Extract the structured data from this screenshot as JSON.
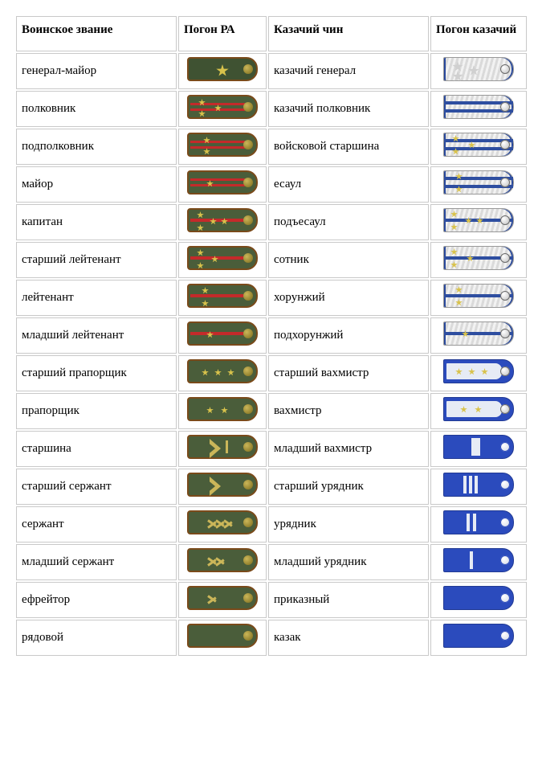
{
  "colors": {
    "ra_field": "#4a5d3a",
    "ra_border": "#7a4a1a",
    "ra_gap": "#c42a2a",
    "ra_star": "#d8c24b",
    "ra_chevron": "#cbb659",
    "cossack_silver_bg_a": "#f2f2f2",
    "cossack_silver_bg_b": "#dadada",
    "cossack_gap": "#2e4ea0",
    "cossack_blue": "#2b4bbd",
    "cossack_inner_white": "#e6ebf5",
    "cossack_star": "#d8c24b",
    "cell_border": "#c9c9c9"
  },
  "headers": {
    "military_rank": "Воинское звание",
    "ra_board": "Погон РА",
    "cossack_rank": "Казачий чин",
    "cossack_board": "Погон казачий"
  },
  "rows": [
    {
      "military_rank": "генерал-майор",
      "cossack_rank": "казачий генерал",
      "ra": {
        "base": "ra",
        "gaps": 0,
        "large_stars": [
          {
            "x": 34,
            "y": 7
          }
        ],
        "stars": [],
        "chevrons": 0,
        "wide_chevron": false,
        "thin_stripe": false,
        "button": "olive",
        "field": "#3f5232"
      },
      "cossack": {
        "base": "coss-silver",
        "gaps": 0,
        "large_stars": [
          {
            "x": 10,
            "y": 4
          },
          {
            "x": 10,
            "y": 16
          },
          {
            "x": 30,
            "y": 9
          }
        ],
        "stars": [],
        "tstripes": [],
        "button": "silver"
      }
    },
    {
      "military_rank": "полковник",
      "cossack_rank": "казачий полковник",
      "ra": {
        "base": "ra",
        "gaps": 2,
        "large_stars": [],
        "stars": [
          {
            "x": 12,
            "y": 3
          },
          {
            "x": 12,
            "y": 17
          },
          {
            "x": 32,
            "y": 10
          }
        ],
        "chevrons": 0,
        "wide_chevron": false,
        "thin_stripe": false,
        "button": "olive"
      },
      "cossack": {
        "base": "coss-silver",
        "gaps": 2,
        "large_stars": [],
        "stars": [],
        "tstripes": [],
        "button": "silver"
      }
    },
    {
      "military_rank": "подполковник",
      "cossack_rank": "войсковой старшина",
      "ra": {
        "base": "ra",
        "gaps": 2,
        "large_stars": [],
        "stars": [
          {
            "x": 18,
            "y": 3
          },
          {
            "x": 18,
            "y": 17
          }
        ],
        "chevrons": 0,
        "wide_chevron": false,
        "thin_stripe": false,
        "button": "olive"
      },
      "cossack": {
        "base": "coss-silver",
        "gaps": 2,
        "large_stars": [],
        "stars": [
          {
            "x": 10,
            "y": 2
          },
          {
            "x": 10,
            "y": 18
          },
          {
            "x": 30,
            "y": 10
          }
        ],
        "tstripes": [],
        "button": "silver"
      }
    },
    {
      "military_rank": "майор",
      "cossack_rank": "есаул",
      "ra": {
        "base": "ra",
        "gaps": 2,
        "large_stars": [],
        "stars": [
          {
            "x": 22,
            "y": 10
          }
        ],
        "chevrons": 0,
        "wide_chevron": false,
        "thin_stripe": false,
        "button": "olive"
      },
      "cossack": {
        "base": "coss-silver",
        "gaps": 2,
        "large_stars": [],
        "stars": [
          {
            "x": 14,
            "y": 2
          },
          {
            "x": 14,
            "y": 18
          }
        ],
        "tstripes": [],
        "button": "silver"
      }
    },
    {
      "military_rank": "капитан",
      "cossack_rank": "подъесаул",
      "ra": {
        "base": "ra",
        "gaps": 1,
        "large_stars": [],
        "stars": [
          {
            "x": 10,
            "y": 2
          },
          {
            "x": 10,
            "y": 18
          },
          {
            "x": 26,
            "y": 10
          },
          {
            "x": 40,
            "y": 10
          }
        ],
        "chevrons": 0,
        "wide_chevron": false,
        "thin_stripe": false,
        "button": "olive"
      },
      "cossack": {
        "base": "coss-silver",
        "gaps": 1,
        "large_stars": [],
        "stars": [
          {
            "x": 8,
            "y": 2
          },
          {
            "x": 8,
            "y": 18
          },
          {
            "x": 26,
            "y": 10
          },
          {
            "x": 40,
            "y": 10
          }
        ],
        "tstripes": [],
        "button": "silver"
      }
    },
    {
      "military_rank": "старший лейтенант",
      "cossack_rank": "сотник",
      "ra": {
        "base": "ra",
        "gaps": 1,
        "large_stars": [],
        "stars": [
          {
            "x": 10,
            "y": 2
          },
          {
            "x": 10,
            "y": 18
          },
          {
            "x": 28,
            "y": 10
          }
        ],
        "chevrons": 0,
        "wide_chevron": false,
        "thin_stripe": false,
        "button": "olive"
      },
      "cossack": {
        "base": "coss-silver",
        "gaps": 1,
        "large_stars": [],
        "stars": [
          {
            "x": 8,
            "y": 2
          },
          {
            "x": 8,
            "y": 18
          },
          {
            "x": 28,
            "y": 10
          }
        ],
        "tstripes": [],
        "button": "silver"
      }
    },
    {
      "military_rank": "лейтенант",
      "cossack_rank": "хорунжий",
      "ra": {
        "base": "ra",
        "gaps": 1,
        "large_stars": [],
        "stars": [
          {
            "x": 16,
            "y": 2
          },
          {
            "x": 16,
            "y": 18
          }
        ],
        "chevrons": 0,
        "wide_chevron": false,
        "thin_stripe": false,
        "button": "olive"
      },
      "cossack": {
        "base": "coss-silver",
        "gaps": 1,
        "large_stars": [],
        "stars": [
          {
            "x": 14,
            "y": 2
          },
          {
            "x": 14,
            "y": 18
          }
        ],
        "tstripes": [],
        "button": "silver"
      }
    },
    {
      "military_rank": "младший лейтенант",
      "cossack_rank": "подхорунжий",
      "ra": {
        "base": "ra",
        "gaps": 1,
        "large_stars": [],
        "stars": [
          {
            "x": 22,
            "y": 10
          }
        ],
        "chevrons": 0,
        "wide_chevron": false,
        "thin_stripe": false,
        "button": "olive"
      },
      "cossack": {
        "base": "coss-silver",
        "gaps": 1,
        "large_stars": [],
        "stars": [
          {
            "x": 22,
            "y": 10
          }
        ],
        "tstripes": [],
        "button": "silver"
      }
    },
    {
      "military_rank": "старший прапорщик",
      "cossack_rank": "старший вахмистр",
      "ra": {
        "base": "ra",
        "gaps": 0,
        "large_stars": [],
        "stars": [
          {
            "x": 16,
            "y": 10
          },
          {
            "x": 32,
            "y": 10
          },
          {
            "x": 48,
            "y": 10
          }
        ],
        "chevrons": 0,
        "wide_chevron": false,
        "thin_stripe": false,
        "button": "olive"
      },
      "cossack": {
        "base": "coss-bluewhite",
        "gaps": 0,
        "large_stars": [],
        "stars": [
          {
            "x": 14,
            "y": 10
          },
          {
            "x": 30,
            "y": 10
          },
          {
            "x": 46,
            "y": 10
          }
        ],
        "tstripes": [],
        "button": "silver"
      }
    },
    {
      "military_rank": "прапорщик",
      "cossack_rank": "вахмистр",
      "ra": {
        "base": "ra",
        "gaps": 0,
        "large_stars": [],
        "stars": [
          {
            "x": 22,
            "y": 10
          },
          {
            "x": 40,
            "y": 10
          }
        ],
        "chevrons": 0,
        "wide_chevron": false,
        "thin_stripe": false,
        "button": "olive"
      },
      "cossack": {
        "base": "coss-bluewhite",
        "gaps": 0,
        "large_stars": [],
        "stars": [
          {
            "x": 20,
            "y": 10
          },
          {
            "x": 38,
            "y": 10
          }
        ],
        "tstripes": [],
        "button": "silver"
      }
    },
    {
      "military_rank": "старшина",
      "cossack_rank": "младший вахмистр",
      "ra": {
        "base": "ra",
        "gaps": 0,
        "large_stars": [],
        "stars": [],
        "chevrons": 0,
        "wide_chevron": true,
        "thin_stripe": true,
        "button": "olive"
      },
      "cossack": {
        "base": "coss-blue",
        "gaps": 0,
        "large_stars": [],
        "stars": [],
        "tstripes": [
          {
            "x": 34,
            "wide": true
          }
        ],
        "button": "white"
      }
    },
    {
      "military_rank": "старший сержант",
      "cossack_rank": "старший урядник",
      "ra": {
        "base": "ra",
        "gaps": 0,
        "large_stars": [],
        "stars": [],
        "chevrons": 0,
        "wide_chevron": true,
        "thin_stripe": false,
        "button": "olive"
      },
      "cossack": {
        "base": "coss-blue",
        "gaps": 0,
        "large_stars": [],
        "stars": [],
        "tstripes": [
          {
            "x": 24
          },
          {
            "x": 31
          },
          {
            "x": 38
          }
        ],
        "button": "white"
      }
    },
    {
      "military_rank": "сержант",
      "cossack_rank": "урядник",
      "ra": {
        "base": "ra",
        "gaps": 0,
        "large_stars": [],
        "stars": [],
        "chevrons": 3,
        "wide_chevron": false,
        "thin_stripe": false,
        "button": "olive"
      },
      "cossack": {
        "base": "coss-blue",
        "gaps": 0,
        "large_stars": [],
        "stars": [],
        "tstripes": [
          {
            "x": 28
          },
          {
            "x": 36
          }
        ],
        "button": "white"
      }
    },
    {
      "military_rank": "младший сержант",
      "cossack_rank": "младший урядник",
      "ra": {
        "base": "ra",
        "gaps": 0,
        "large_stars": [],
        "stars": [],
        "chevrons": 2,
        "wide_chevron": false,
        "thin_stripe": false,
        "button": "olive"
      },
      "cossack": {
        "base": "coss-blue",
        "gaps": 0,
        "large_stars": [],
        "stars": [],
        "tstripes": [
          {
            "x": 32
          }
        ],
        "button": "white"
      }
    },
    {
      "military_rank": "ефрейтор",
      "cossack_rank": "приказный",
      "ra": {
        "base": "ra",
        "gaps": 0,
        "large_stars": [],
        "stars": [],
        "chevrons": 1,
        "wide_chevron": false,
        "thin_stripe": false,
        "button": "olive"
      },
      "cossack": {
        "base": "coss-blue",
        "gaps": 0,
        "large_stars": [],
        "stars": [],
        "tstripes": [],
        "button": "white"
      }
    },
    {
      "military_rank": "рядовой",
      "cossack_rank": "казак",
      "ra": {
        "base": "ra",
        "gaps": 0,
        "large_stars": [],
        "stars": [],
        "chevrons": 0,
        "wide_chevron": false,
        "thin_stripe": false,
        "button": "olive"
      },
      "cossack": {
        "base": "coss-blue",
        "gaps": 0,
        "large_stars": [],
        "stars": [],
        "tstripes": [],
        "button": "white"
      }
    }
  ]
}
